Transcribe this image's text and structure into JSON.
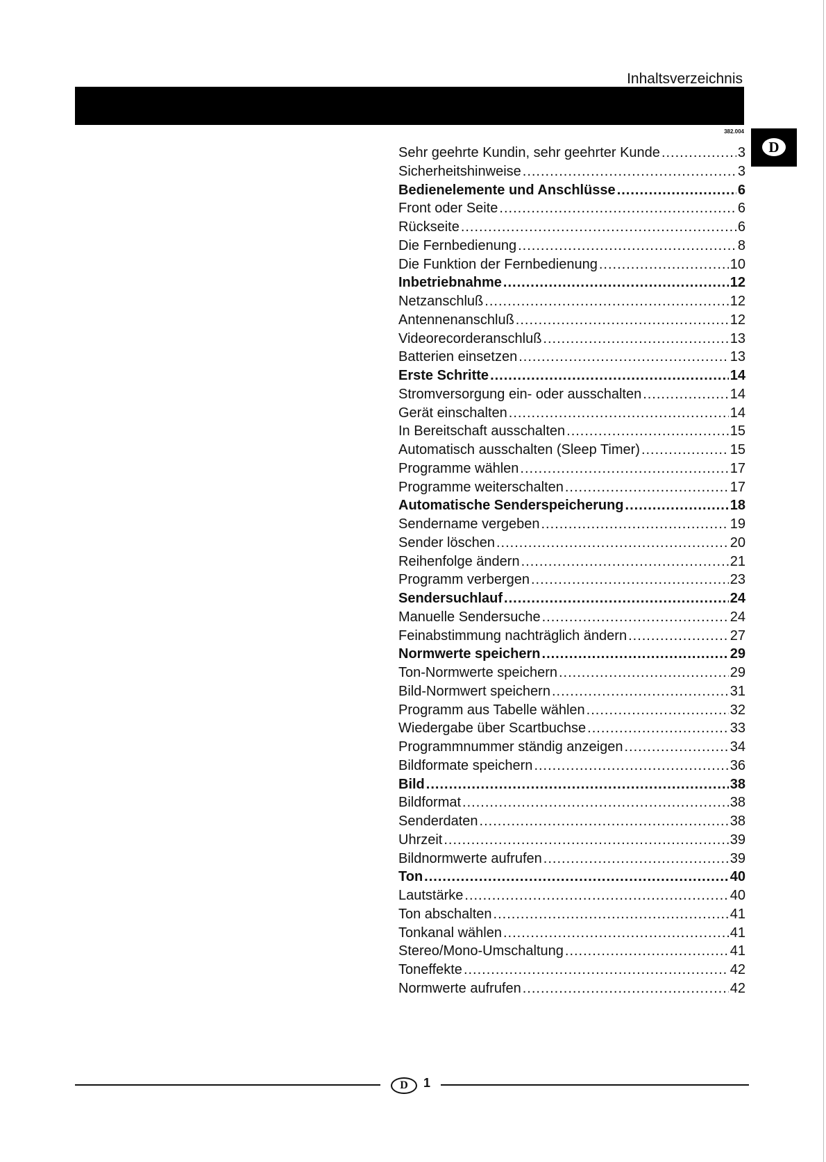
{
  "header": {
    "title": "Inhaltsverzeichnis",
    "code": "382.004",
    "language_badge": "D"
  },
  "toc": [
    {
      "title": "Sehr geehrte Kundin, sehr geehrter Kunde",
      "page": "3",
      "bold": false
    },
    {
      "title": "Sicherheitshinweise",
      "page": "3",
      "bold": false
    },
    {
      "title": "Bedienelemente und Anschlüsse",
      "page": "6",
      "bold": true
    },
    {
      "title": "Front oder Seite",
      "page": "6",
      "bold": false
    },
    {
      "title": "Rückseite",
      "page": "6",
      "bold": false
    },
    {
      "title": "Die Fernbedienung",
      "page": "8",
      "bold": false
    },
    {
      "title": "Die Funktion der Fernbedienung",
      "page": "10",
      "bold": false
    },
    {
      "title": "Inbetriebnahme",
      "page": "12",
      "bold": true
    },
    {
      "title": "Netzanschluß",
      "page": "12",
      "bold": false
    },
    {
      "title": "Antennenanschluß",
      "page": "12",
      "bold": false
    },
    {
      "title": "Videorecorderanschluß",
      "page": "13",
      "bold": false
    },
    {
      "title": "Batterien einsetzen",
      "page": "13",
      "bold": false
    },
    {
      "title": "Erste Schritte",
      "page": "14",
      "bold": true
    },
    {
      "title": "Stromversorgung ein- oder ausschalten",
      "page": "14",
      "bold": false
    },
    {
      "title": "Gerät einschalten",
      "page": "14",
      "bold": false
    },
    {
      "title": "In Bereitschaft ausschalten",
      "page": "15",
      "bold": false
    },
    {
      "title": "Automatisch ausschalten (Sleep Timer)",
      "page": "15",
      "bold": false
    },
    {
      "title": "Programme wählen",
      "page": "17",
      "bold": false
    },
    {
      "title": "Programme weiterschalten",
      "page": "17",
      "bold": false
    },
    {
      "title": "Automatische Senderspeicherung",
      "page": "18",
      "bold": true
    },
    {
      "title": "Sendername vergeben",
      "page": "19",
      "bold": false
    },
    {
      "title": "Sender löschen",
      "page": "20",
      "bold": false
    },
    {
      "title": "Reihenfolge ändern",
      "page": "21",
      "bold": false
    },
    {
      "title": "Programm verbergen",
      "page": "23",
      "bold": false
    },
    {
      "title": "Sendersuchlauf",
      "page": "24",
      "bold": true
    },
    {
      "title": "Manuelle Sendersuche",
      "page": "24",
      "bold": false
    },
    {
      "title": "Feinabstimmung nachträglich ändern",
      "page": "27",
      "bold": false
    },
    {
      "title": "Normwerte speichern",
      "page": "29",
      "bold": true
    },
    {
      "title": "Ton-Normwerte speichern",
      "page": "29",
      "bold": false
    },
    {
      "title": "Bild-Normwert speichern",
      "page": "31",
      "bold": false
    },
    {
      "title": "Programm aus Tabelle wählen",
      "page": "32",
      "bold": false
    },
    {
      "title": "Wiedergabe über Scartbuchse",
      "page": "33",
      "bold": false
    },
    {
      "title": "Programmnummer ständig anzeigen",
      "page": "34",
      "bold": false
    },
    {
      "title": "Bildformate speichern",
      "page": "36",
      "bold": false
    },
    {
      "title": "Bild",
      "page": "38",
      "bold": true
    },
    {
      "title": "Bildformat",
      "page": "38",
      "bold": false
    },
    {
      "title": "Senderdaten",
      "page": "38",
      "bold": false
    },
    {
      "title": "Uhrzeit",
      "page": "39",
      "bold": false
    },
    {
      "title": "Bildnormwerte aufrufen",
      "page": "39",
      "bold": false
    },
    {
      "title": "Ton",
      "page": "40",
      "bold": true
    },
    {
      "title": "Lautstärke",
      "page": "40",
      "bold": false
    },
    {
      "title": "Ton abschalten",
      "page": "41",
      "bold": false
    },
    {
      "title": "Tonkanal wählen",
      "page": "41",
      "bold": false
    },
    {
      "title": "Stereo/Mono-Umschaltung",
      "page": "41",
      "bold": false
    },
    {
      "title": "Toneffekte",
      "page": "42",
      "bold": false
    },
    {
      "title": "Normwerte aufrufen",
      "page": "42",
      "bold": false
    }
  ],
  "footer": {
    "badge": "D",
    "page_number": "1"
  }
}
